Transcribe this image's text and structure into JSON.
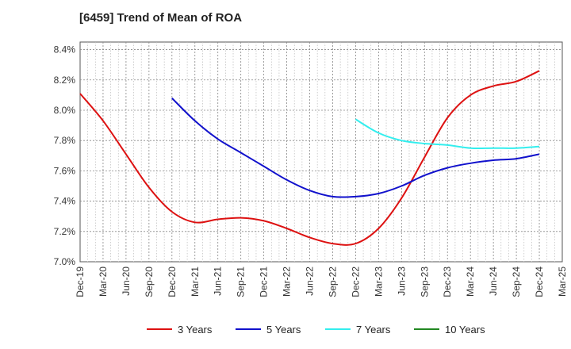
{
  "chart_data": {
    "type": "line",
    "title": "[6459]  Trend of Mean of ROA",
    "xlabel": "",
    "ylabel": "",
    "x_ticks": [
      "Dec-19",
      "Mar-20",
      "Jun-20",
      "Sep-20",
      "Dec-20",
      "Mar-21",
      "Jun-21",
      "Sep-21",
      "Dec-21",
      "Mar-22",
      "Jun-22",
      "Sep-22",
      "Dec-22",
      "Mar-23",
      "Jun-23",
      "Sep-23",
      "Dec-23",
      "Mar-24",
      "Jun-24",
      "Sep-24",
      "Dec-24",
      "Mar-25"
    ],
    "y_ticks": [
      "7.0%",
      "7.2%",
      "7.4%",
      "7.6%",
      "7.8%",
      "8.0%",
      "8.2%",
      "8.4%"
    ],
    "ylim": [
      7.0,
      8.45
    ],
    "grid": true,
    "legend_position": "bottom",
    "series": [
      {
        "name": "3 Years",
        "color": "#dd1111",
        "values": [
          8.11,
          7.93,
          7.71,
          7.49,
          7.33,
          7.26,
          7.28,
          7.29,
          7.27,
          7.22,
          7.16,
          7.12,
          7.12,
          7.22,
          7.42,
          7.69,
          7.95,
          8.1,
          8.16,
          8.19,
          8.26,
          null
        ]
      },
      {
        "name": "5 Years",
        "color": "#1111cc",
        "values": [
          null,
          null,
          null,
          null,
          8.08,
          7.93,
          7.81,
          7.72,
          7.63,
          7.54,
          7.47,
          7.43,
          7.43,
          7.45,
          7.5,
          7.57,
          7.62,
          7.65,
          7.67,
          7.68,
          7.71,
          null
        ]
      },
      {
        "name": "7 Years",
        "color": "#33eeee",
        "values": [
          null,
          null,
          null,
          null,
          null,
          null,
          null,
          null,
          null,
          null,
          null,
          null,
          7.94,
          7.85,
          7.8,
          7.78,
          7.77,
          7.75,
          7.75,
          7.75,
          7.76,
          null
        ]
      },
      {
        "name": "10 Years",
        "color": "#228822",
        "values": [
          null,
          null,
          null,
          null,
          null,
          null,
          null,
          null,
          null,
          null,
          null,
          null,
          null,
          null,
          null,
          null,
          null,
          null,
          null,
          null,
          null,
          null
        ]
      }
    ]
  }
}
